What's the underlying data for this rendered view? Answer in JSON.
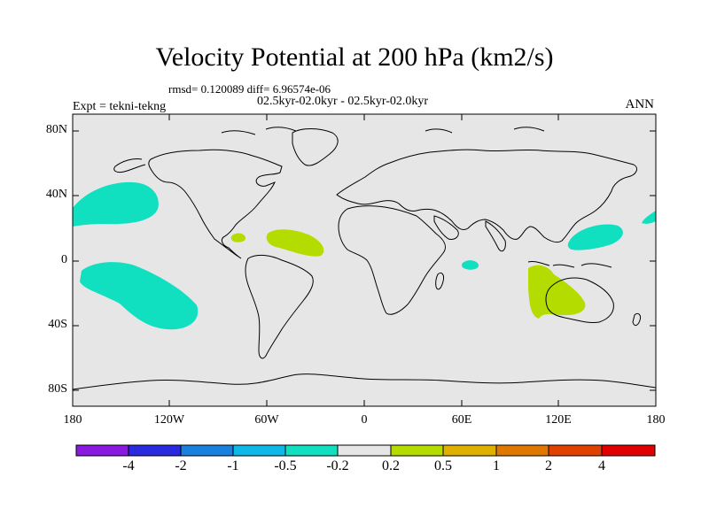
{
  "header": {
    "title": "Velocity Potential at 200 hPa (km2/s)",
    "stats": "rmsd= 0.120089 diff= 6.96574e-06",
    "subtitle": "02.5kyr-02.0kyr - 02.5kyr-02.0kyr",
    "experiment": "Expt = tekni-tekng",
    "season": "ANN"
  },
  "axes": {
    "lat_labels": [
      "80N",
      "40N",
      "0",
      "40S",
      "80S"
    ],
    "lon_labels": [
      "180",
      "120W",
      "60W",
      "0",
      "60E",
      "120E",
      "180"
    ]
  },
  "colorbar": {
    "labels": [
      "-4",
      "-2",
      "-1",
      "-0.5",
      "-0.2",
      "0.2",
      "0.5",
      "1",
      "2",
      "4"
    ],
    "colors": [
      "#8a1ae0",
      "#2a2ae0",
      "#1a80e0",
      "#10b8e8",
      "#10e0c0",
      "#e6e6e6",
      "#b4dc00",
      "#e0b000",
      "#e07800",
      "#e04000",
      "#e00000"
    ]
  },
  "map": {
    "ocean_color": "#e6e6e6",
    "anomaly_regions": [
      {
        "name": "north-pacific-negative",
        "category": "-0.5 to -0.2",
        "color": "#10e0c0"
      },
      {
        "name": "south-pacific-negative",
        "category": "-0.5 to -0.2",
        "color": "#10e0c0"
      },
      {
        "name": "caribbean-positive",
        "category": "0.2 to 0.5",
        "color": "#b4dc00"
      },
      {
        "name": "central-america-positive",
        "category": "0.2 to 0.5",
        "color": "#b4dc00"
      },
      {
        "name": "indian-ocean-negative",
        "category": "-0.5 to -0.2",
        "color": "#10e0c0"
      },
      {
        "name": "australia-indian-positive",
        "category": "0.2 to 0.5",
        "color": "#b4dc00"
      },
      {
        "name": "west-pacific-negative",
        "category": "-0.5 to -0.2",
        "color": "#10e0c0"
      },
      {
        "name": "east-edge-negative",
        "category": "-0.5 to -0.2",
        "color": "#10e0c0"
      }
    ]
  }
}
